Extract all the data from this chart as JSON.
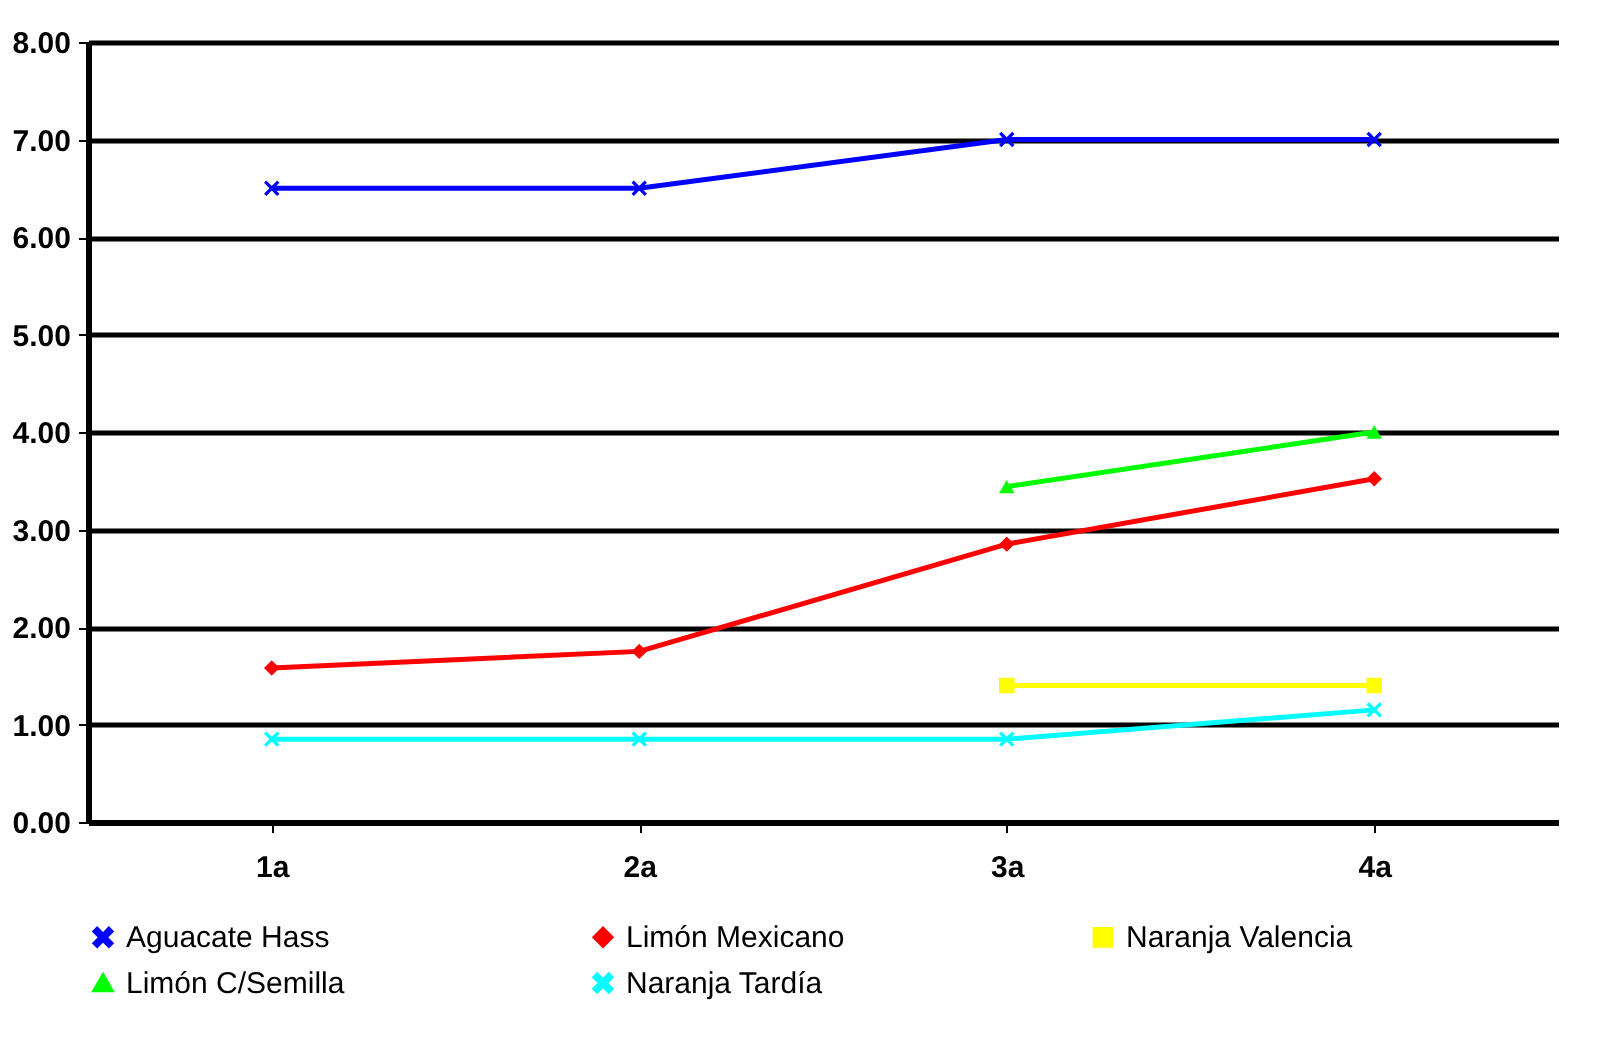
{
  "chart_data": {
    "type": "line",
    "categories": [
      "1a",
      "2a",
      "3a",
      "4a"
    ],
    "series": [
      {
        "name": "Aguacate Hass",
        "color": "#0000ff",
        "marker": "cross",
        "values": [
          6.5,
          6.5,
          7.0,
          7.0
        ]
      },
      {
        "name": "Limón Mexicano",
        "color": "#ff0000",
        "marker": "diamond",
        "values": [
          1.58,
          1.75,
          2.85,
          3.52
        ]
      },
      {
        "name": "Naranja Valencia",
        "color": "#ffff00",
        "marker": "square",
        "values": [
          null,
          null,
          1.4,
          1.4
        ]
      },
      {
        "name": "Limón C/Semilla",
        "color": "#00ff00",
        "marker": "triangle",
        "values": [
          null,
          null,
          3.44,
          4.0
        ]
      },
      {
        "name": "Naranja Tardía",
        "color": "#00ffff",
        "marker": "cross",
        "values": [
          0.85,
          0.85,
          0.85,
          1.15
        ]
      }
    ],
    "ylim": [
      0,
      8
    ],
    "yticks": [
      {
        "value": 0,
        "label": "0.00"
      },
      {
        "value": 1,
        "label": "1.00"
      },
      {
        "value": 2,
        "label": "2.00"
      },
      {
        "value": 3,
        "label": "3.00"
      },
      {
        "value": 4,
        "label": "4.00"
      },
      {
        "value": 5,
        "label": "5.00"
      },
      {
        "value": 6,
        "label": "6.00"
      },
      {
        "value": 7,
        "label": "7.00"
      },
      {
        "value": 8,
        "label": "8.00"
      }
    ],
    "grid": "y",
    "legend": "bottom",
    "line_style": "solid"
  }
}
